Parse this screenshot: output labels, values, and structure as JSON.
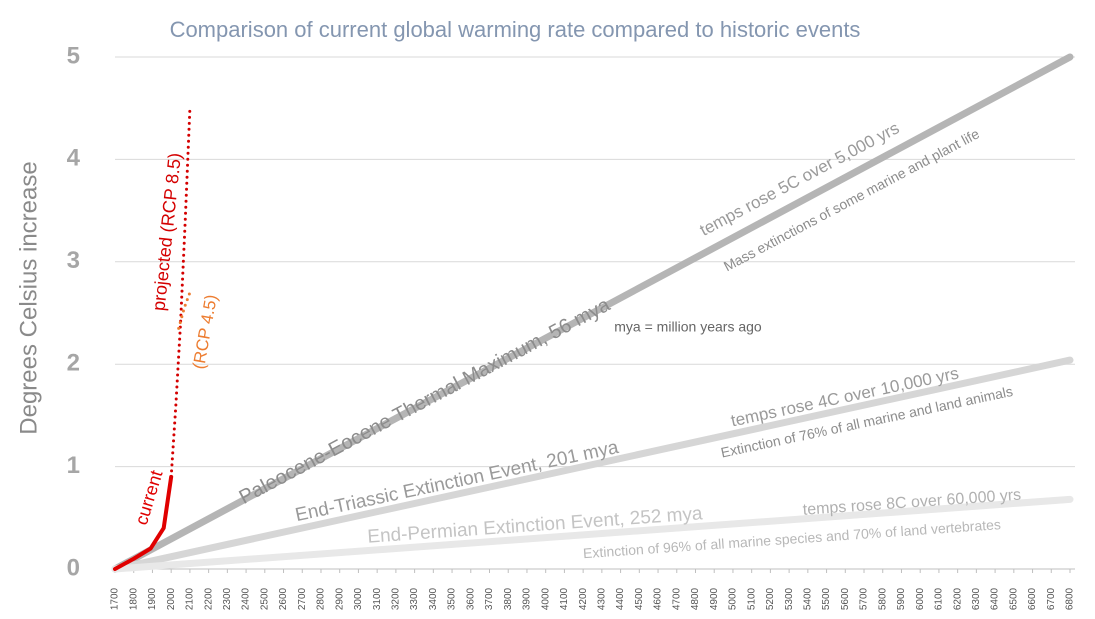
{
  "chart_data": {
    "type": "line",
    "title": "Comparison of current global warming rate compared to historic events",
    "y_label": "Degrees Celsius increase",
    "xlim": [
      1700,
      6800
    ],
    "ylim": [
      0,
      5
    ],
    "xticks": [
      1700,
      1800,
      1900,
      2000,
      2100,
      2200,
      2300,
      2400,
      2500,
      2600,
      2700,
      2800,
      2900,
      3000,
      3100,
      3200,
      3300,
      3400,
      3500,
      3600,
      3700,
      3800,
      3900,
      4000,
      4100,
      4200,
      4300,
      4400,
      4500,
      4600,
      4700,
      4800,
      4900,
      5000,
      5100,
      5200,
      5300,
      5400,
      5500,
      5600,
      5700,
      5800,
      5900,
      6000,
      6100,
      6200,
      6300,
      6400,
      6500,
      6600,
      6700,
      6800
    ],
    "yticks": [
      0,
      1,
      2,
      3,
      4,
      5
    ],
    "grid": true,
    "series": [
      {
        "name": "Paleocene-Eocene Thermal Maximum, 56 mya",
        "color": "#b5b5b5",
        "style": "solid",
        "x": [
          1700,
          6800
        ],
        "values": [
          0,
          5
        ]
      },
      {
        "name": "End-Triassic Extinction Event, 201 mya",
        "color": "#d6d6d6",
        "style": "solid",
        "x": [
          1700,
          6800
        ],
        "values": [
          0,
          2.04
        ]
      },
      {
        "name": "End-Permian Extinction Event, 252 mya",
        "color": "#e8e8e8",
        "style": "solid",
        "x": [
          1700,
          6800
        ],
        "values": [
          0,
          0.68
        ]
      },
      {
        "name": "current",
        "color": "#e00000",
        "style": "solid",
        "x": [
          1700,
          1800,
          1890,
          1960,
          2000
        ],
        "values": [
          0,
          0.1,
          0.2,
          0.4,
          0.9
        ]
      },
      {
        "name": "projected (RCP 8.5)",
        "color": "#d40000",
        "style": "dotted",
        "x": [
          2000,
          2025,
          2050,
          2075,
          2100
        ],
        "values": [
          0.9,
          1.6,
          2.4,
          3.4,
          4.5
        ]
      },
      {
        "name": "(RCP 4.5)",
        "color": "#ed7d31",
        "style": "dotted",
        "x": [
          2040,
          2070,
          2100
        ],
        "values": [
          2.35,
          2.55,
          2.7
        ]
      }
    ],
    "annotations": [
      "temps rose 5C over 5,000 yrs",
      "Mass extinctions of some marine and plant life",
      "mya = million years ago",
      "temps rose 4C over 10,000 yrs",
      "Extinction of 76% of all marine and land animals",
      "temps rose 8C over 60,000 yrs",
      "Extinction of 96% of all marine species and 70% of land vertebrates"
    ]
  }
}
